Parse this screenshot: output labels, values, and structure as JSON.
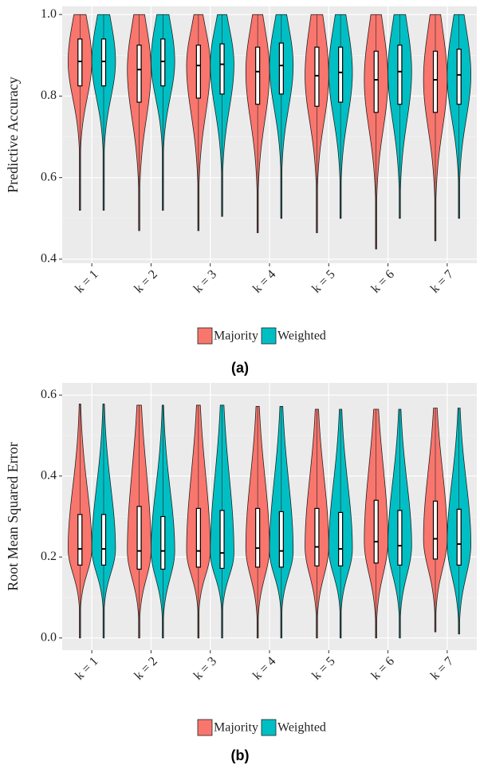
{
  "chart_data": [
    {
      "type": "violin",
      "y_label": "Predictive Accuracy",
      "caption": "(a)",
      "categories": [
        "k = 1",
        "k = 2",
        "k = 3",
        "k = 4",
        "k = 5",
        "k = 6",
        "k = 7"
      ],
      "ylim": [
        0.39,
        1.02
      ],
      "yticks": [
        0.4,
        0.6,
        0.8,
        {
          "value": 1,
          "label": "1.0"
        }
      ],
      "grid": true,
      "series": [
        {
          "name": "Majority",
          "color": "#f8766d",
          "min": [
            0.52,
            0.47,
            0.47,
            0.465,
            0.465,
            0.425,
            0.445
          ],
          "q1": [
            0.825,
            0.785,
            0.795,
            0.78,
            0.775,
            0.76,
            0.76
          ],
          "median": [
            0.885,
            0.865,
            0.875,
            0.86,
            0.85,
            0.84,
            0.84
          ],
          "q3": [
            0.94,
            0.925,
            0.925,
            0.92,
            0.92,
            0.91,
            0.91
          ],
          "max": [
            1,
            1,
            1,
            1,
            1,
            1,
            1
          ]
        },
        {
          "name": "Weighted",
          "color": "#00bfc4",
          "min": [
            0.52,
            0.52,
            0.505,
            0.5,
            0.5,
            0.5,
            0.5
          ],
          "q1": [
            0.825,
            0.825,
            0.805,
            0.805,
            0.785,
            0.78,
            0.78
          ],
          "median": [
            0.885,
            0.885,
            0.878,
            0.875,
            0.858,
            0.86,
            0.852
          ],
          "q3": [
            0.94,
            0.94,
            0.928,
            0.93,
            0.92,
            0.925,
            0.915
          ],
          "max": [
            1,
            1,
            1,
            1,
            1,
            1,
            1
          ]
        }
      ]
    },
    {
      "type": "violin",
      "y_label": "Root Mean Squared Error",
      "caption": "(b)",
      "categories": [
        "k = 1",
        "k = 2",
        "k = 3",
        "k = 4",
        "k = 5",
        "k = 6",
        "k = 7"
      ],
      "ylim": [
        -0.03,
        0.63
      ],
      "yticks": [
        {
          "value": 0,
          "label": "0.0"
        },
        0.2,
        0.4,
        0.6
      ],
      "grid": true,
      "series": [
        {
          "name": "Majority",
          "color": "#f8766d",
          "min": [
            0,
            0,
            0,
            0,
            0,
            0,
            0.015
          ],
          "q1": [
            0.18,
            0.17,
            0.175,
            0.175,
            0.178,
            0.185,
            0.195
          ],
          "median": [
            0.22,
            0.215,
            0.215,
            0.222,
            0.225,
            0.238,
            0.245
          ],
          "q3": [
            0.305,
            0.325,
            0.32,
            0.32,
            0.32,
            0.34,
            0.338
          ],
          "max": [
            0.578,
            0.575,
            0.575,
            0.572,
            0.565,
            0.565,
            0.568
          ]
        },
        {
          "name": "Weighted",
          "color": "#00bfc4",
          "min": [
            0,
            0,
            0,
            0,
            0,
            0,
            0.01
          ],
          "q1": [
            0.18,
            0.17,
            0.172,
            0.175,
            0.178,
            0.18,
            0.18
          ],
          "median": [
            0.22,
            0.215,
            0.21,
            0.215,
            0.22,
            0.228,
            0.232
          ],
          "q3": [
            0.305,
            0.3,
            0.315,
            0.312,
            0.31,
            0.315,
            0.318
          ],
          "max": [
            0.578,
            0.575,
            0.575,
            0.572,
            0.565,
            0.565,
            0.568
          ]
        }
      ]
    }
  ]
}
